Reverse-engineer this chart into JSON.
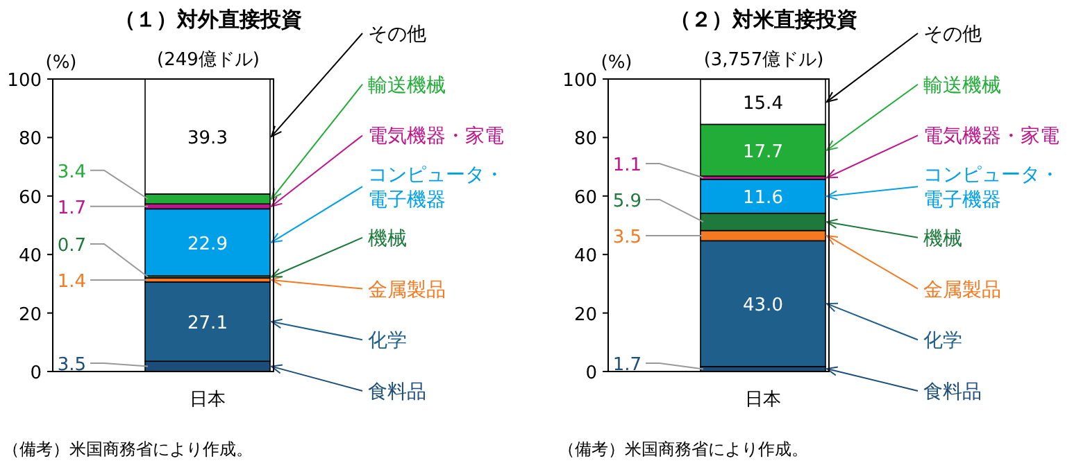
{
  "chart_data": [
    {
      "type": "bar",
      "stacked": true,
      "title": "（１）対外直接投資",
      "subtitle": "(249億ドル)",
      "ylabel": "(%)",
      "categories": [
        "日本"
      ],
      "ylim": [
        0,
        100
      ],
      "yticks": [
        0,
        20,
        40,
        60,
        80,
        100
      ],
      "legend": "right",
      "series": [
        {
          "name": "食料品",
          "color": "#1d4e7a",
          "values": [
            3.5
          ],
          "value_labels": [
            "3.5"
          ]
        },
        {
          "name": "化学",
          "color": "#1f5f8b",
          "values": [
            27.1
          ],
          "value_labels": [
            "27.1"
          ]
        },
        {
          "name": "金属製品",
          "color": "#f47920",
          "values": [
            1.4
          ],
          "value_labels": [
            "1.4"
          ]
        },
        {
          "name": "機械",
          "color": "#1e7a3c",
          "values": [
            0.7
          ],
          "value_labels": [
            "0.7"
          ]
        },
        {
          "name": "コンピュータ・電子機器",
          "color": "#00a0e9",
          "values": [
            22.9
          ],
          "value_labels": [
            "22.9"
          ]
        },
        {
          "name": "電気機器・家電",
          "color": "#c0148c",
          "values": [
            1.7
          ],
          "value_labels": [
            "1.7"
          ]
        },
        {
          "name": "輸送機械",
          "color": "#22ac38",
          "values": [
            3.4
          ],
          "value_labels": [
            "3.4"
          ]
        },
        {
          "name": "その他",
          "color": "#ffffff",
          "values": [
            39.3
          ],
          "value_labels": [
            "39.3"
          ]
        }
      ],
      "annotations": [
        "（備考）米国商務省により作成。"
      ]
    },
    {
      "type": "bar",
      "stacked": true,
      "title": "（２）対米直接投資",
      "subtitle": "(3,757億ドル)",
      "ylabel": "(%)",
      "categories": [
        "日本"
      ],
      "ylim": [
        0,
        100
      ],
      "yticks": [
        0,
        20,
        40,
        60,
        80,
        100
      ],
      "legend": "right",
      "series": [
        {
          "name": "食料品",
          "color": "#1d4e7a",
          "values": [
            1.7
          ],
          "value_labels": [
            "1.7"
          ]
        },
        {
          "name": "化学",
          "color": "#1f5f8b",
          "values": [
            43.0
          ],
          "value_labels": [
            "43.0"
          ]
        },
        {
          "name": "金属製品",
          "color": "#f47920",
          "values": [
            3.5
          ],
          "value_labels": [
            "3.5"
          ]
        },
        {
          "name": "機械",
          "color": "#1e7a3c",
          "values": [
            5.9
          ],
          "value_labels": [
            "5.9"
          ]
        },
        {
          "name": "コンピュータ・電子機器",
          "color": "#00a0e9",
          "values": [
            11.6
          ],
          "value_labels": [
            "11.6"
          ]
        },
        {
          "name": "電気機器・家電",
          "color": "#c0148c",
          "values": [
            1.1
          ],
          "value_labels": [
            "1.1"
          ]
        },
        {
          "name": "輸送機械",
          "color": "#22ac38",
          "values": [
            17.7
          ],
          "value_labels": [
            "17.7"
          ]
        },
        {
          "name": "その他",
          "color": "#ffffff",
          "values": [
            15.4
          ],
          "value_labels": [
            "15.4"
          ]
        }
      ],
      "annotations": [
        "（備考）米国商務省により作成。"
      ]
    }
  ]
}
